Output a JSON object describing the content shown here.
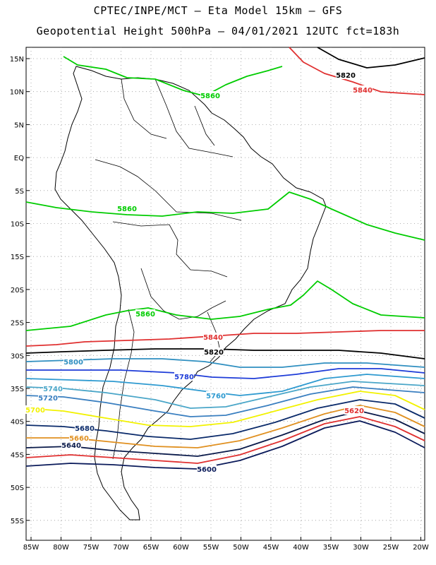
{
  "title": {
    "line1": "CPTEC/INPE/MCT –  Eta Model 15km – GFS",
    "line2": "Geopotential Height 500hPa – 04/01/2021 12UTC fct=183h"
  },
  "axes": {
    "lat_labels": [
      "15N",
      "10N",
      "5N",
      "EQ",
      "5S",
      "10S",
      "15S",
      "20S",
      "25S",
      "30S",
      "35S",
      "40S",
      "45S",
      "50S",
      "55S"
    ],
    "lon_labels": [
      "85W",
      "80W",
      "75W",
      "70W",
      "65W",
      "60W",
      "55W",
      "50W",
      "45W",
      "40W",
      "35W",
      "30W",
      "25W",
      "20W"
    ]
  },
  "contours": [
    {
      "level": "5860",
      "color": "#00cc00"
    },
    {
      "level": "5840",
      "color": "#e03030"
    },
    {
      "level": "5820",
      "color": "#000000"
    },
    {
      "level": "5800",
      "color": "#2f8fc0"
    },
    {
      "level": "5780",
      "color": "#1e3cd8"
    },
    {
      "level": "5760",
      "color": "#2e9ad0"
    },
    {
      "level": "5740",
      "color": "#4aa6c8"
    },
    {
      "level": "5720",
      "color": "#3a7fc0"
    },
    {
      "level": "5700",
      "color": "#f2f200"
    },
    {
      "level": "5680",
      "color": "#0a2a6a"
    },
    {
      "level": "5660",
      "color": "#e09020"
    },
    {
      "level": "5640",
      "color": "#0a1a4a"
    },
    {
      "level": "5620",
      "color": "#e03030"
    },
    {
      "level": "5600",
      "color": "#0a1a5a"
    }
  ]
}
